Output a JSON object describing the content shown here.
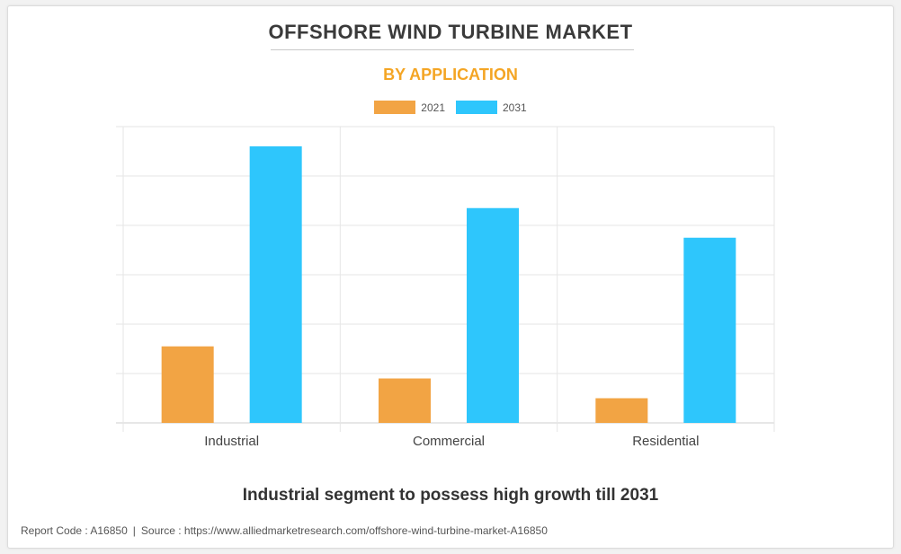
{
  "chart_data": {
    "type": "bar",
    "title": "OFFSHORE WIND TURBINE MARKET",
    "subtitle": "BY APPLICATION",
    "categories": [
      "Industrial",
      "Commercial",
      "Residential"
    ],
    "series": [
      {
        "name": "2021",
        "color": "#f2a444",
        "values": [
          1.55,
          0.9,
          0.5
        ]
      },
      {
        "name": "2031",
        "color": "#2ec6fc",
        "values": [
          5.6,
          4.35,
          3.75
        ]
      }
    ],
    "ylim": [
      0,
      6
    ],
    "y_ticks": 6,
    "xlabel": "",
    "ylabel": "",
    "grid": true,
    "legend": "top-center",
    "caption": "Industrial segment to possess high growth till 2031"
  },
  "colors": {
    "accent": "#f4a524",
    "title": "#3a3a3a"
  },
  "footer": {
    "report_code": "Report Code : A16850",
    "source": "Source : https://www.alliedmarketresearch.com/offshore-wind-turbine-market-A16850",
    "separator": "|"
  }
}
